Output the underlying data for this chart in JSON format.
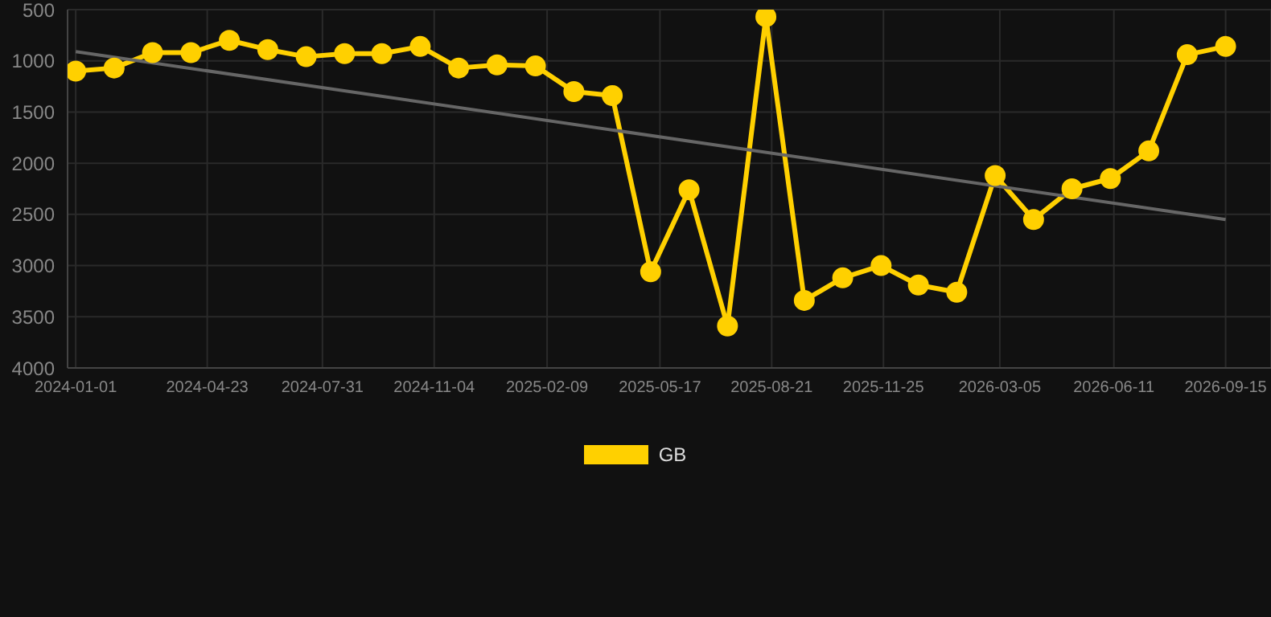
{
  "chart_data": {
    "type": "line",
    "x": [
      "2024-01-01",
      "2024-02-03",
      "2024-03-07",
      "2024-04-09",
      "2024-05-12",
      "2024-06-14",
      "2024-07-17",
      "2024-08-19",
      "2024-09-20",
      "2024-10-23",
      "2024-11-25",
      "2024-12-28",
      "2025-01-30",
      "2025-03-04",
      "2025-04-06",
      "2025-05-09",
      "2025-06-11",
      "2025-07-14",
      "2025-08-16",
      "2025-09-18",
      "2025-10-21",
      "2025-11-23",
      "2025-12-25",
      "2026-01-27",
      "2026-03-01",
      "2026-04-03",
      "2026-05-06",
      "2026-06-08",
      "2026-07-11",
      "2026-08-13",
      "2026-09-15"
    ],
    "series": [
      {
        "name": "GB",
        "color": "#ffd000",
        "values": [
          1100,
          1070,
          920,
          920,
          800,
          890,
          960,
          930,
          930,
          860,
          1070,
          1040,
          1050,
          1300,
          1340,
          3060,
          2260,
          3590,
          570,
          3340,
          3120,
          3000,
          3190,
          3260,
          2120,
          2550,
          2250,
          2150,
          1880,
          940,
          860
        ]
      },
      {
        "type": "line",
        "color": "#666666",
        "marker": "none",
        "x": [
          "2024-01-01",
          "2026-09-15"
        ],
        "values": [
          910,
          2550
        ]
      }
    ],
    "xlim": [
      "2023-12-25",
      "2026-10-24"
    ],
    "xticks": [
      "2024-01-01",
      "2024-04-23",
      "2024-07-31",
      "2024-11-04",
      "2025-02-09",
      "2025-05-17",
      "2025-08-21",
      "2025-11-25",
      "2026-03-05",
      "2026-06-11",
      "2026-09-15"
    ],
    "ylim": [
      4000,
      500
    ],
    "yticks": [
      500,
      1000,
      1500,
      2000,
      2500,
      3000,
      3500,
      4000
    ],
    "grid": true,
    "legend": "bottom",
    "marker": "circle",
    "line_style": "solid"
  }
}
